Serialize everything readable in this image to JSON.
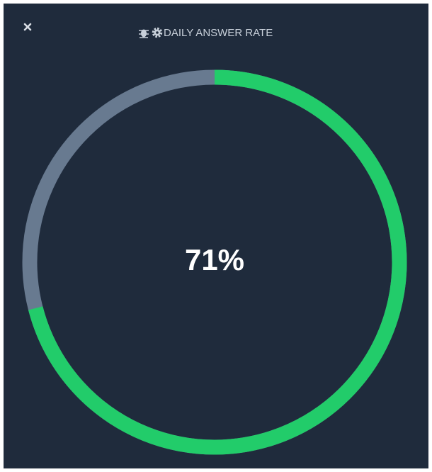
{
  "chart_data": {
    "type": "donut",
    "title": "DAILY ANSWER RATE",
    "values": [
      71
    ],
    "value_labels": [
      "71%"
    ],
    "max": 100,
    "color": "#22cc6a",
    "track_color": "#687a90"
  }
}
